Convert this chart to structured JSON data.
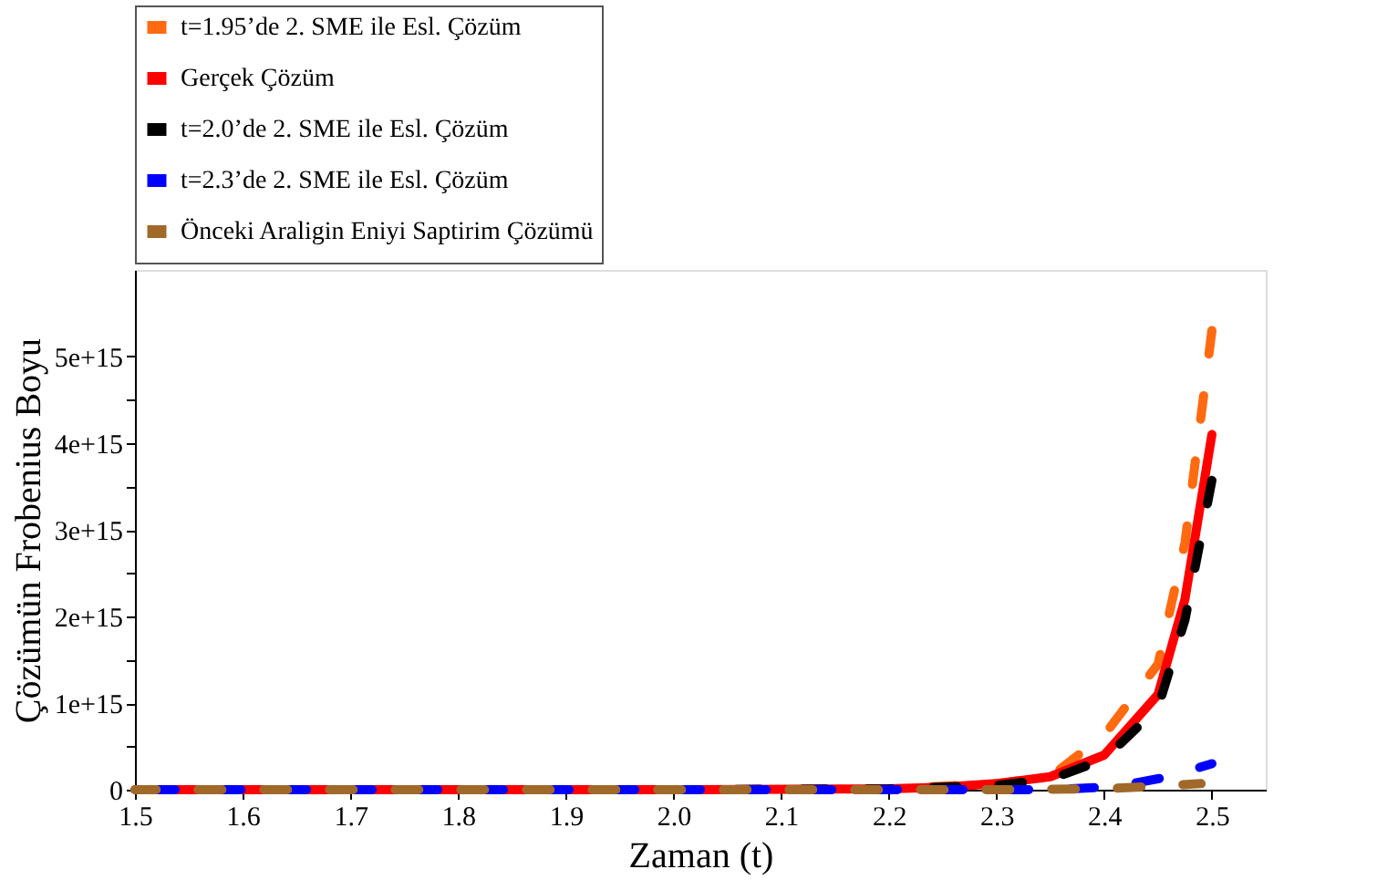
{
  "chart_data": {
    "type": "line",
    "xlabel": "Zaman (t)",
    "ylabel": "Çözümün Frobenius Boyu",
    "xlim": [
      1.5,
      2.55
    ],
    "ylim": [
      0,
      6000000000000000.0
    ],
    "xticks": [
      1.5,
      1.6,
      1.7,
      1.8,
      1.9,
      {
        "value": 2.0,
        "label": "2.0"
      },
      2.1,
      2.2,
      2.3,
      2.4,
      2.5
    ],
    "yticks": [
      0,
      {
        "value": 500000000000000.0,
        "label": null
      },
      {
        "value": 1000000000000000.0,
        "label": "1e+15"
      },
      {
        "value": 1500000000000000.0,
        "label": null
      },
      {
        "value": 2000000000000000.0,
        "label": "2e+15"
      },
      {
        "value": 2500000000000000.0,
        "label": null
      },
      {
        "value": 3000000000000000.0,
        "label": "3e+15"
      },
      {
        "value": 3500000000000000.0,
        "label": null
      },
      {
        "value": 4000000000000000.0,
        "label": "4e+15"
      },
      {
        "value": 4500000000000000.0,
        "label": null
      },
      {
        "value": 5000000000000000.0,
        "label": "5e+15"
      }
    ],
    "grid": false,
    "legend": "top",
    "marker": "none",
    "series": [
      {
        "name": "t=1.95’de 2. SME ile Esl. Çözüm",
        "color": "#ff6a10",
        "line_style": "dashed",
        "x": [
          1.95,
          2.1,
          2.2,
          2.3,
          2.35,
          2.4,
          2.45,
          2.475,
          2.5
        ],
        "values": [
          0,
          0,
          10000000000000.0,
          70000000000000.0,
          150000000000000.0,
          630000000000000.0,
          1450000000000000.0,
          2850000000000000.0,
          5300000000000000.0
        ]
      },
      {
        "name": "Gerçek Çözüm",
        "color": "#ff0000",
        "line_style": "solid",
        "x": [
          1.5,
          1.8,
          2.0,
          2.2,
          2.25,
          2.3,
          2.35,
          2.4,
          2.45,
          2.475,
          2.5
        ],
        "values": [
          0,
          0,
          0,
          10000000000000.0,
          30000000000000.0,
          70000000000000.0,
          150000000000000.0,
          400000000000000.0,
          1100000000000000.0,
          2200000000000000.0,
          4100000000000000.0
        ]
      },
      {
        "name": "t=2.0’de 2. SME ile Esl. Çözüm",
        "color": "#000000",
        "line_style": "dashed",
        "x": [
          2.0,
          2.2,
          2.3,
          2.35,
          2.4,
          2.45,
          2.475,
          2.5
        ],
        "values": [
          0,
          10000000000000.0,
          50000000000000.0,
          120000000000000.0,
          350000000000000.0,
          950000000000000.0,
          1960000000000000.0,
          3570000000000000.0
        ]
      },
      {
        "name": "t=2.3’de 2. SME ile Esl. Çözüm",
        "color": "#0000ff",
        "line_style": "dashed",
        "x": [
          1.5,
          2.0,
          2.3,
          2.35,
          2.4,
          2.43,
          2.46,
          2.5
        ],
        "values": [
          0,
          0,
          0,
          0,
          30000000000000.0,
          80000000000000.0,
          150000000000000.0,
          300000000000000.0
        ]
      },
      {
        "name": "Önceki Araligin Eniyi Saptirim Çözümü",
        "color": "#a0692a",
        "line_style": "dashed",
        "x": [
          1.5,
          2.0,
          2.3,
          2.4,
          2.49
        ],
        "values": [
          0,
          0,
          0,
          10000000000000.0,
          70000000000000.0
        ]
      }
    ]
  }
}
